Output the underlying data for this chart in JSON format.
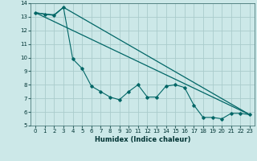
{
  "title": "",
  "xlabel": "Humidex (Indice chaleur)",
  "background_color": "#cce8e8",
  "grid_color": "#aacccc",
  "line_color": "#006666",
  "xlim": [
    -0.5,
    23.5
  ],
  "ylim": [
    5,
    14
  ],
  "xticks": [
    0,
    1,
    2,
    3,
    4,
    5,
    6,
    7,
    8,
    9,
    10,
    11,
    12,
    13,
    14,
    15,
    16,
    17,
    18,
    19,
    20,
    21,
    22,
    23
  ],
  "yticks": [
    5,
    6,
    7,
    8,
    9,
    10,
    11,
    12,
    13,
    14
  ],
  "line1_x": [
    0,
    1,
    2,
    3,
    4,
    5,
    6,
    7,
    8,
    9,
    10,
    11,
    12,
    13,
    14,
    15,
    16,
    17,
    18,
    19,
    20,
    21,
    22,
    23
  ],
  "line1_y": [
    13.3,
    13.2,
    13.1,
    13.7,
    9.9,
    9.2,
    7.9,
    7.5,
    7.1,
    6.9,
    7.5,
    8.0,
    7.1,
    7.1,
    7.9,
    8.0,
    7.8,
    6.5,
    5.6,
    5.6,
    5.5,
    5.9,
    5.9,
    5.8
  ],
  "line2_x": [
    0,
    1,
    2,
    3,
    23
  ],
  "line2_y": [
    13.3,
    13.2,
    13.15,
    13.7,
    5.8
  ],
  "line3_x": [
    0,
    23
  ],
  "line3_y": [
    13.3,
    5.8
  ],
  "xlabel_fontsize": 6,
  "tick_fontsize": 5
}
